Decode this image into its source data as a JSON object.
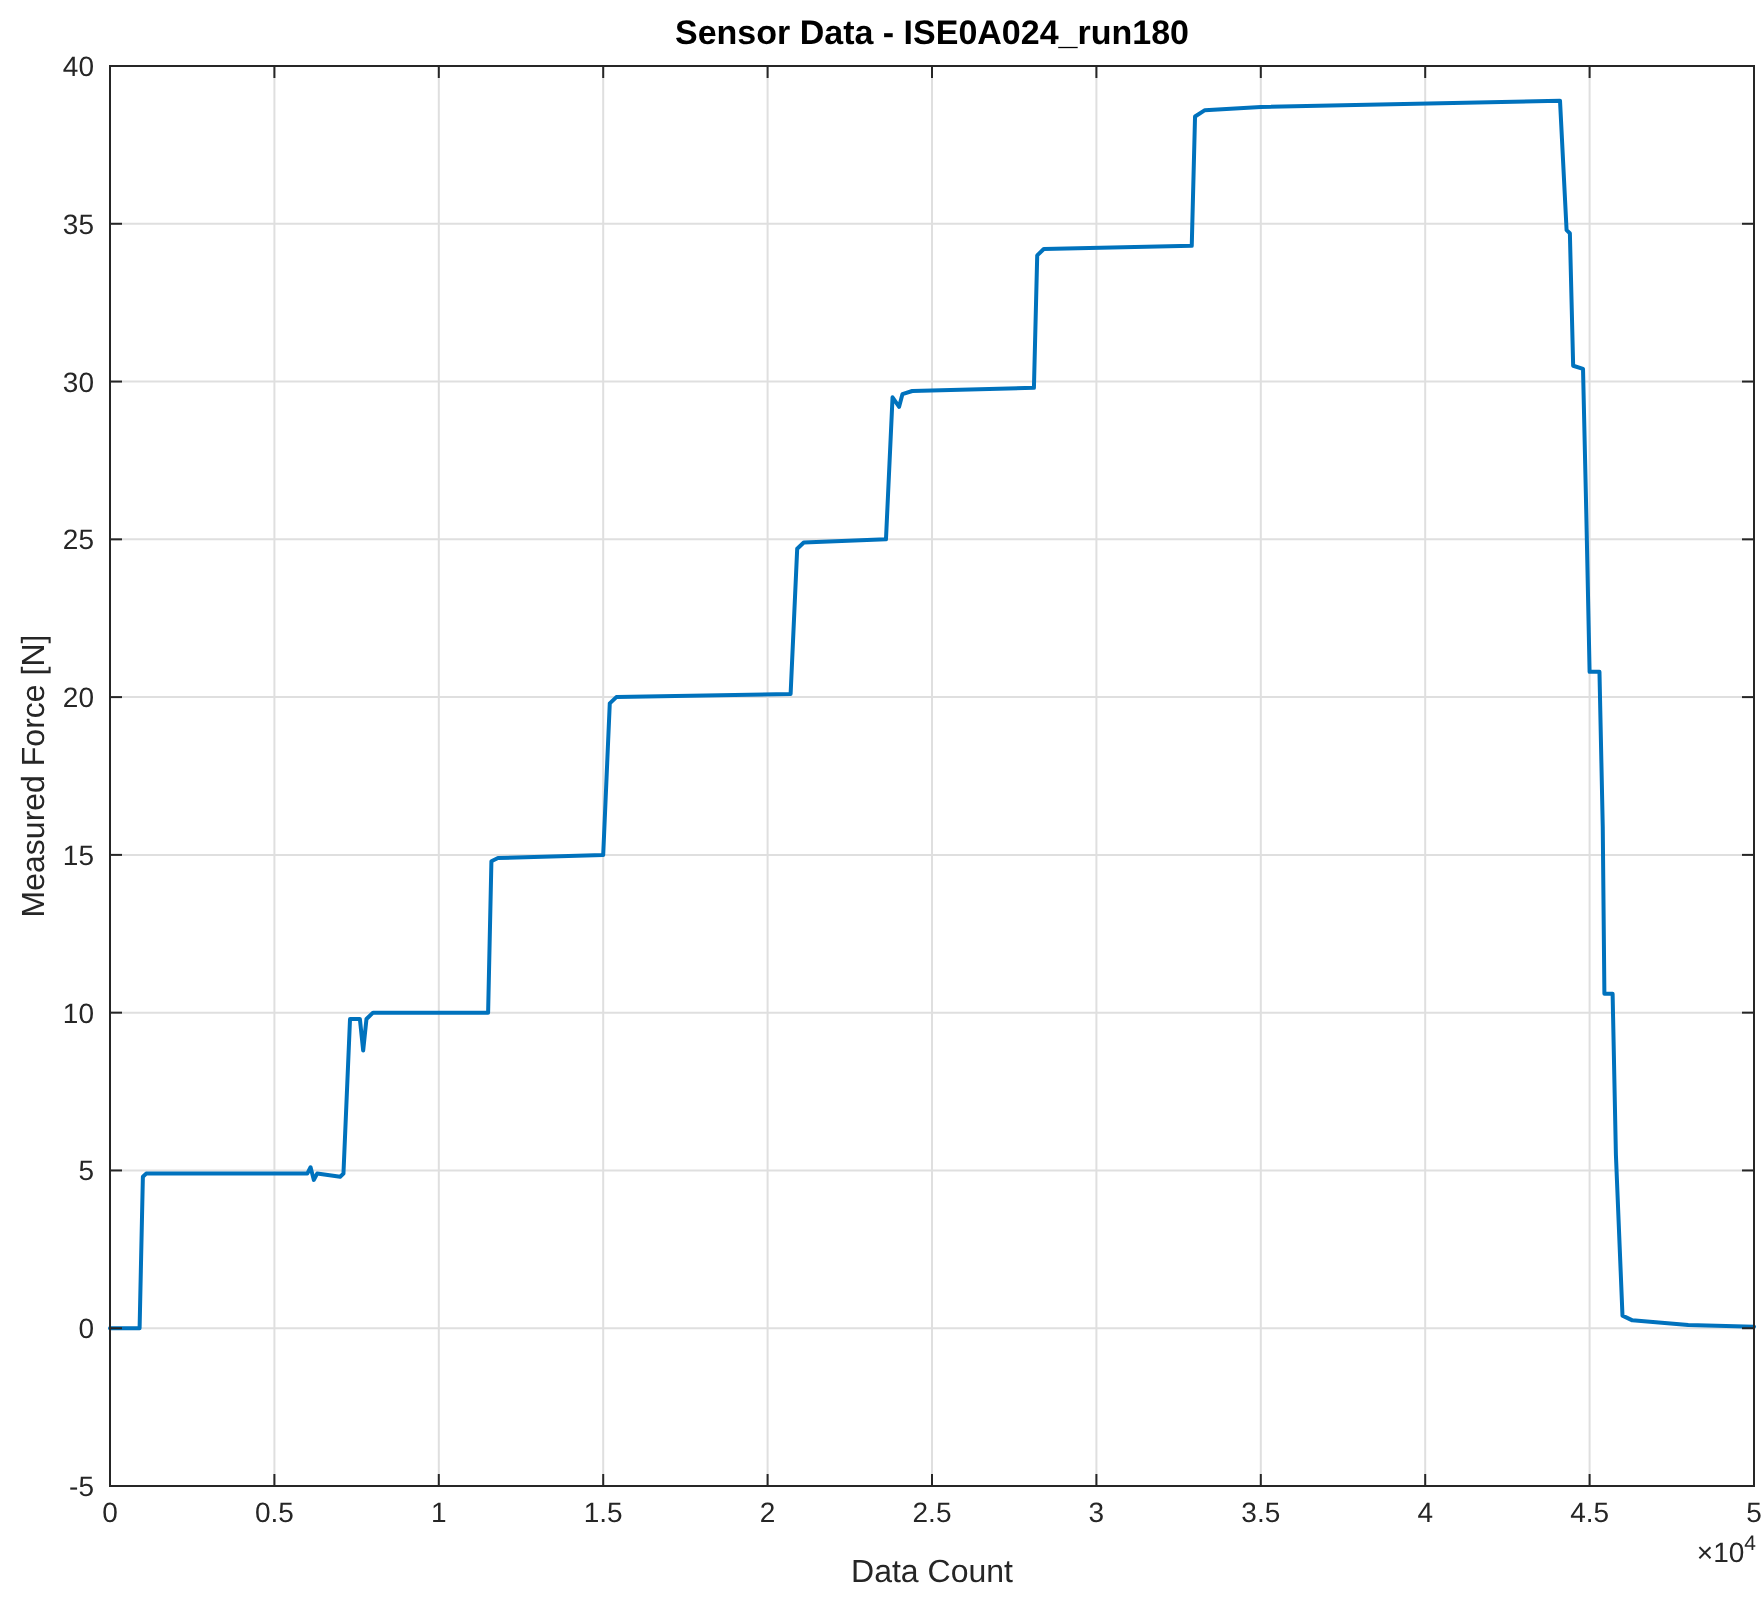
{
  "chart_data": {
    "type": "line",
    "title": "Sensor Data - ISE0A024_run180",
    "xlabel": "Data Count",
    "ylabel": "Measured Force [N]",
    "annotations": [
      "×10$^{4}$"
    ],
    "xlim": [
      0,
      5
    ],
    "xticks": [
      0,
      0.5,
      1,
      1.5,
      2,
      2.5,
      3,
      3.5,
      4,
      4.5,
      5
    ],
    "ylim": [
      -5,
      40
    ],
    "yticks": [
      -5,
      0,
      5,
      10,
      15,
      20,
      25,
      30,
      35,
      40
    ],
    "grid": true,
    "series": [
      {
        "color": "#0072bd",
        "x": [
          0,
          0.09,
          0.1,
          0.11,
          0.6,
          0.61,
          0.62,
          0.63,
          0.7,
          0.71,
          0.73,
          0.76,
          0.77,
          0.78,
          0.8,
          1.15,
          1.16,
          1.18,
          1.5,
          1.52,
          1.54,
          2.07,
          2.09,
          2.11,
          2.36,
          2.38,
          2.4,
          2.41,
          2.44,
          2.81,
          2.82,
          2.84,
          3.29,
          3.3,
          3.33,
          3.5,
          4.41,
          4.43,
          4.44,
          4.45,
          4.48,
          4.49,
          4.5,
          4.53,
          4.54,
          4.545,
          4.57,
          4.58,
          4.6,
          4.63,
          4.8,
          5
        ],
        "values": [
          0,
          0,
          4.8,
          4.9,
          4.9,
          5.1,
          4.7,
          4.9,
          4.8,
          4.9,
          9.8,
          9.8,
          8.8,
          9.8,
          10,
          10,
          14.8,
          14.9,
          15,
          19.8,
          20,
          20.1,
          24.7,
          24.9,
          25,
          29.5,
          29.2,
          29.6,
          29.7,
          29.8,
          34,
          34.2,
          34.3,
          38.4,
          38.6,
          38.7,
          38.9,
          34.8,
          34.7,
          30.5,
          30.4,
          25.8,
          20.8,
          20.8,
          15.9,
          10.6,
          10.6,
          5.5,
          0.4,
          0.25,
          0.1,
          0.05
        ]
      }
    ]
  }
}
